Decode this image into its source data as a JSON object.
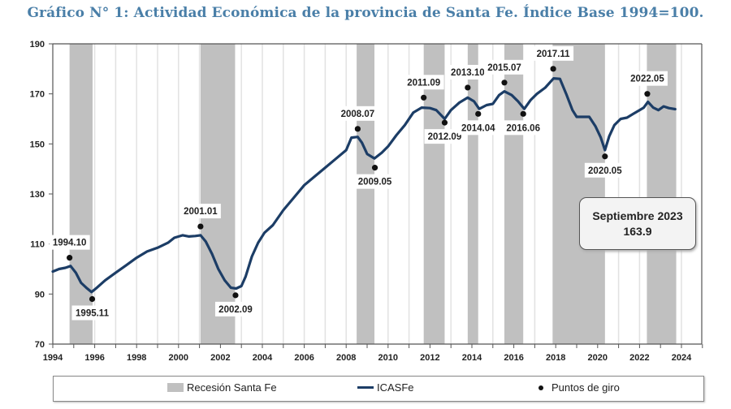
{
  "title": "Gráfico N° 1: Actividad Económica de la provincia de Santa Fe. Índice Base 1994=100.",
  "annotation": {
    "label": "Septiembre 2023",
    "value": "163.9"
  },
  "legend": {
    "recession": "Recesión Santa Fe",
    "series": "ICASFe",
    "turning_points": "Puntos de giro"
  },
  "colors": {
    "title": "#4a7fa8",
    "line": "#1c3d66",
    "recession": "#c0c0c0",
    "gridline": "#e2e2e2",
    "dot": "#111111"
  },
  "chart_data": {
    "type": "line",
    "title": "Gráfico N° 1: Actividad Económica de la provincia de Santa Fe. Índice Base 1994=100.",
    "xlabel": "",
    "ylabel": "",
    "xlim": [
      1994,
      2025
    ],
    "ylim": [
      70,
      190
    ],
    "yticks": [
      70,
      90,
      110,
      130,
      150,
      170,
      190
    ],
    "xticks": [
      1994,
      1996,
      1998,
      2000,
      2002,
      2004,
      2006,
      2008,
      2010,
      2012,
      2014,
      2016,
      2018,
      2020,
      2022,
      2024
    ],
    "grid": "vertical yearly",
    "legend_position": "bottom",
    "series": [
      {
        "name": "ICASFe",
        "x": [
          1994.0,
          1994.3,
          1994.6,
          1994.85,
          1995.1,
          1995.35,
          1995.6,
          1995.85,
          1996.1,
          1996.5,
          1997.0,
          1997.5,
          1998.0,
          1998.5,
          1999.0,
          1999.5,
          1999.8,
          2000.2,
          2000.5,
          2000.8,
          2001.05,
          2001.3,
          2001.6,
          2001.9,
          2002.2,
          2002.5,
          2002.75,
          2003.0,
          2003.2,
          2003.5,
          2003.8,
          2004.1,
          2004.5,
          2005.0,
          2005.5,
          2006.0,
          2006.5,
          2007.0,
          2007.5,
          2008.0,
          2008.25,
          2008.55,
          2008.75,
          2009.0,
          2009.35,
          2009.7,
          2010.0,
          2010.4,
          2010.8,
          2011.2,
          2011.6,
          2012.0,
          2012.3,
          2012.7,
          2013.0,
          2013.4,
          2013.8,
          2014.1,
          2014.35,
          2014.7,
          2015.0,
          2015.3,
          2015.55,
          2015.9,
          2016.2,
          2016.5,
          2016.8,
          2017.1,
          2017.5,
          2017.9,
          2018.2,
          2018.5,
          2018.8,
          2019.0,
          2019.3,
          2019.6,
          2019.9,
          2020.15,
          2020.35,
          2020.55,
          2020.8,
          2021.1,
          2021.4,
          2021.7,
          2022.0,
          2022.2,
          2022.4,
          2022.65,
          2022.9,
          2023.15,
          2023.4,
          2023.7
        ],
        "values": [
          99.0,
          100.0,
          100.5,
          101.2,
          98.5,
          94.5,
          92.5,
          90.8,
          92.5,
          95.5,
          98.5,
          101.5,
          104.5,
          107.0,
          108.5,
          110.5,
          112.5,
          113.5,
          113.0,
          113.2,
          113.5,
          111.0,
          106.0,
          100.0,
          95.5,
          92.5,
          92.2,
          93.2,
          97.0,
          105.0,
          110.5,
          114.5,
          117.5,
          123.5,
          128.5,
          133.5,
          137.0,
          140.5,
          144.0,
          147.5,
          152.5,
          152.8,
          150.5,
          146.0,
          144.2,
          146.5,
          149.0,
          153.5,
          157.5,
          162.5,
          164.5,
          164.3,
          163.5,
          160.0,
          163.5,
          166.5,
          168.5,
          167.0,
          164.0,
          165.5,
          166.0,
          169.5,
          171.0,
          169.5,
          167.0,
          164.0,
          167.5,
          170.0,
          172.5,
          176.2,
          176.0,
          170.0,
          163.5,
          160.8,
          160.8,
          160.8,
          157.0,
          152.5,
          147.5,
          153.0,
          157.5,
          160.0,
          160.5,
          162.0,
          163.5,
          164.5,
          166.8,
          164.5,
          163.5,
          165.0,
          164.3,
          163.9
        ]
      }
    ],
    "recessions": [
      {
        "start": 1994.8,
        "end": 1995.9
      },
      {
        "start": 2001.05,
        "end": 2002.7
      },
      {
        "start": 2008.5,
        "end": 2009.35
      },
      {
        "start": 2011.7,
        "end": 2012.7
      },
      {
        "start": 2013.8,
        "end": 2014.3
      },
      {
        "start": 2015.55,
        "end": 2016.45
      },
      {
        "start": 2017.85,
        "end": 2020.35
      },
      {
        "start": 2022.35,
        "end": 2023.75
      }
    ],
    "turning_points": [
      {
        "label": "1994.10",
        "x": 1994.8,
        "y": 104.5,
        "label_pos": "above"
      },
      {
        "label": "1995.11",
        "x": 1995.88,
        "y": 88.0,
        "label_pos": "below"
      },
      {
        "label": "2001.01",
        "x": 2001.05,
        "y": 117.0,
        "label_pos": "above"
      },
      {
        "label": "2002.09",
        "x": 2002.72,
        "y": 89.5,
        "label_pos": "below"
      },
      {
        "label": "2008.07",
        "x": 2008.55,
        "y": 156.0,
        "label_pos": "above"
      },
      {
        "label": "2009.05",
        "x": 2009.37,
        "y": 140.5,
        "label_pos": "below"
      },
      {
        "label": "2011.09",
        "x": 2011.7,
        "y": 168.5,
        "label_pos": "above"
      },
      {
        "label": "2012.09",
        "x": 2012.7,
        "y": 158.5,
        "label_pos": "below"
      },
      {
        "label": "2013.10",
        "x": 2013.8,
        "y": 172.5,
        "label_pos": "above"
      },
      {
        "label": "2014.04",
        "x": 2014.3,
        "y": 162.0,
        "label_pos": "below"
      },
      {
        "label": "2015.07",
        "x": 2015.55,
        "y": 174.5,
        "label_pos": "above"
      },
      {
        "label": "2016.06",
        "x": 2016.45,
        "y": 162.0,
        "label_pos": "below"
      },
      {
        "label": "2017.11",
        "x": 2017.88,
        "y": 180.0,
        "label_pos": "above"
      },
      {
        "label": "2020.05",
        "x": 2020.35,
        "y": 145.0,
        "label_pos": "below"
      },
      {
        "label": "2022.05",
        "x": 2022.37,
        "y": 170.0,
        "label_pos": "above"
      }
    ]
  }
}
